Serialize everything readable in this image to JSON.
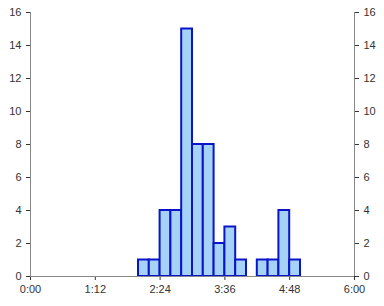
{
  "chart_data": {
    "type": "histogram",
    "bins": [
      2.0,
      2.2,
      2.4,
      2.6,
      2.8,
      3.0,
      3.2,
      3.4,
      3.6,
      3.8,
      4.0,
      4.2,
      4.4,
      4.6,
      4.8,
      5.0
    ],
    "values": [
      1,
      1,
      4,
      4,
      15,
      8,
      8,
      2,
      3,
      1,
      0,
      1,
      1,
      4,
      1
    ],
    "color": "#a6d2f7",
    "xlim": [
      0,
      6
    ],
    "xticks": [
      {
        "value": 0,
        "label": "0:00"
      },
      {
        "value": 1.2,
        "label": "1:12"
      },
      {
        "value": 2.4,
        "label": "2:24"
      },
      {
        "value": 3.6,
        "label": "3:36"
      },
      {
        "value": 4.8,
        "label": "4:48"
      },
      {
        "value": 6,
        "label": "6:00"
      }
    ],
    "ylim": [
      0,
      16
    ],
    "yticks": [
      0,
      2,
      4,
      6,
      8,
      10,
      12,
      14,
      16
    ],
    "grid": false
  }
}
